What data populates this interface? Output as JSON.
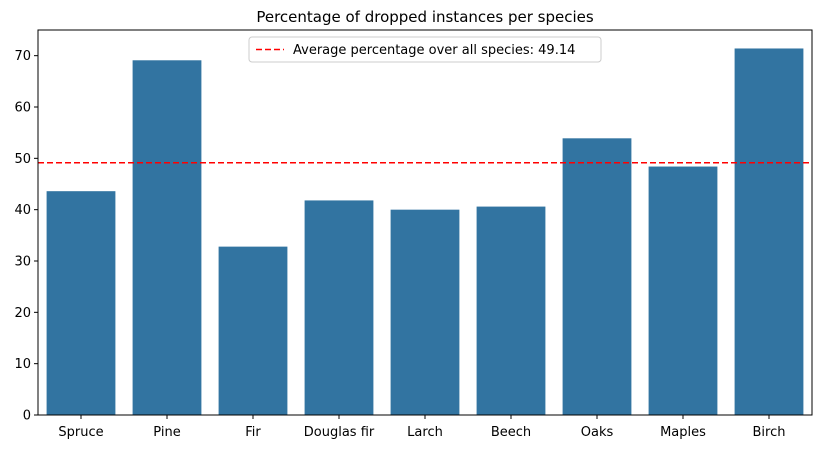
{
  "chart_data": {
    "type": "bar",
    "title": "Percentage of dropped instances per species",
    "xlabel": "",
    "ylabel": "",
    "categories": [
      "Spruce",
      "Pine",
      "Fir",
      "Douglas fir",
      "Larch",
      "Beech",
      "Oaks",
      "Maples",
      "Birch"
    ],
    "values": [
      43.6,
      69.1,
      32.8,
      41.8,
      40.0,
      40.6,
      53.9,
      48.4,
      71.4
    ],
    "ylim": [
      0,
      75
    ],
    "yticks": [
      0,
      10,
      20,
      30,
      40,
      50,
      60,
      70
    ],
    "bar_color": "#3274a1",
    "grid": false,
    "reference_line": {
      "value": 49.14,
      "style": "dashed",
      "color": "#ff0000",
      "label": "Average percentage over all species: 49.14"
    },
    "legend_position": "top-center"
  }
}
